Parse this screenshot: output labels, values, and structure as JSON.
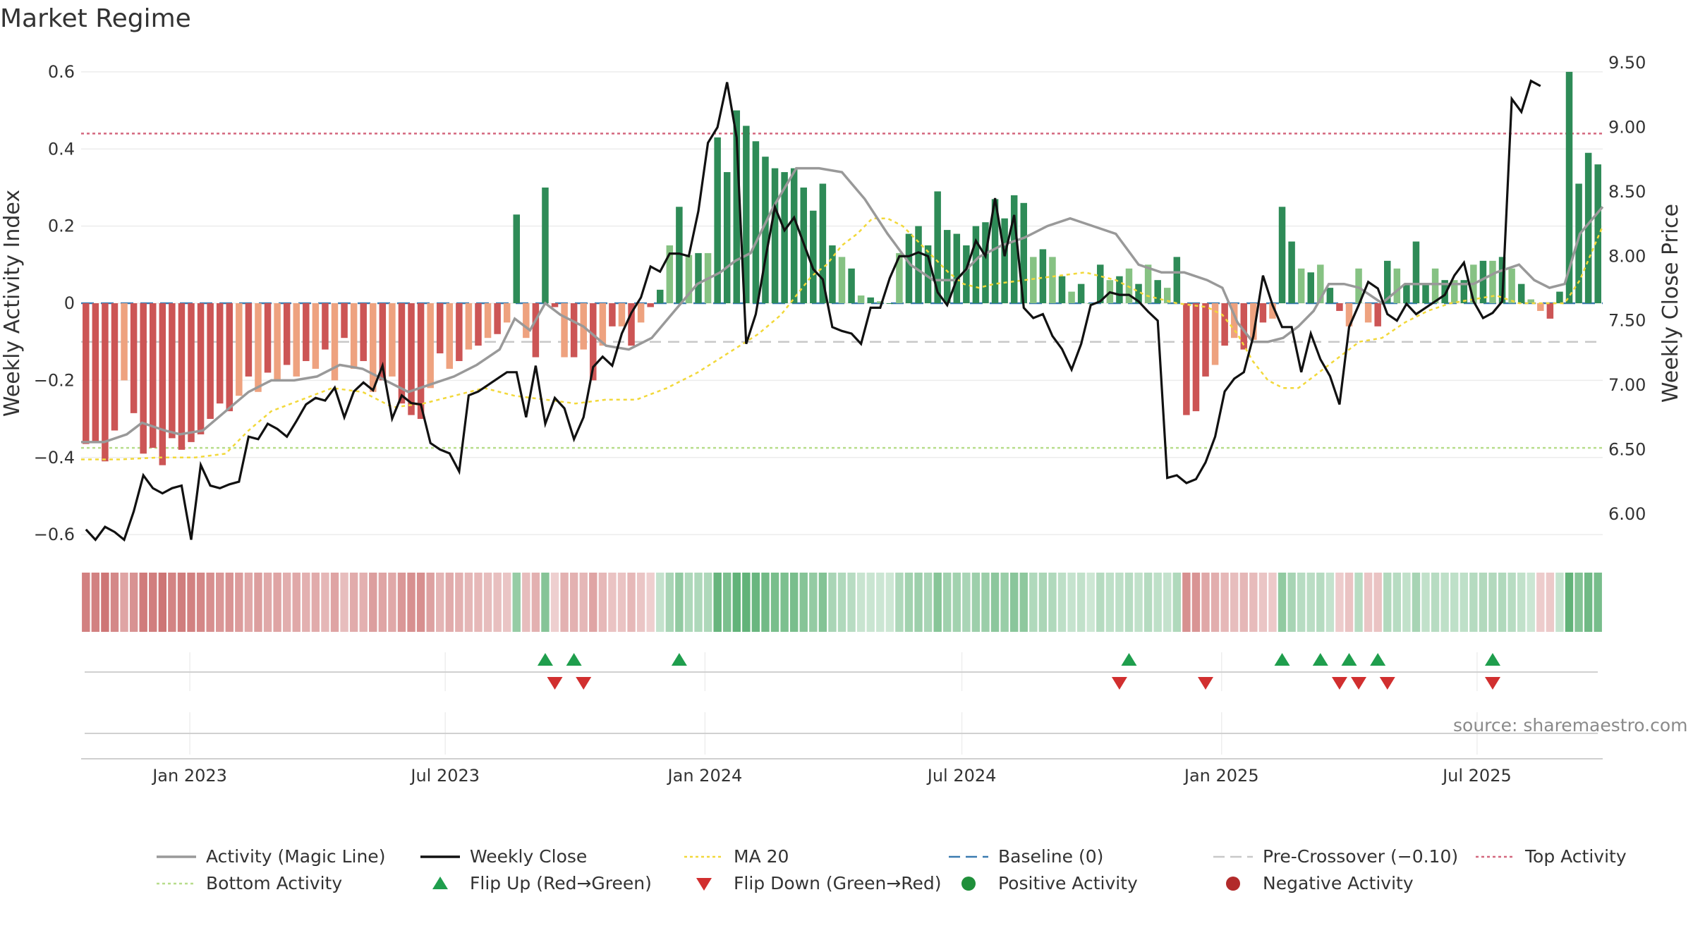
{
  "title": "Market Regime",
  "source": "source: sharemaestro.com",
  "colors": {
    "activity_line": "#999999",
    "close_line": "#111111",
    "ma20": "#f2d83a",
    "baseline": "#3a7bb0",
    "pre_crossover": "#c8c8c8",
    "top_activity": "#d4687e",
    "bottom_activity": "#b8dd8c",
    "pos_dark": "#2e8b57",
    "pos_light": "#86c283",
    "neg_dark": "#cc5555",
    "neg_light": "#eea27f",
    "flip_up": "#1f9e4d",
    "flip_down": "#d12f2f",
    "positive_activity": "#1f8f3a",
    "negative_activity": "#b22a2a"
  },
  "chart_data": {
    "type": "bar",
    "title": "Market Regime",
    "ylabel_left": "Weekly Activity Index",
    "ylabel_right": "Weekly Close Price",
    "ylim_left": [
      -0.64,
      0.64
    ],
    "ylim_right": [
      5.72,
      9.55
    ],
    "yticks_left": [
      "0.6",
      "0.4",
      "0.2",
      "0",
      "−0.2",
      "−0.4",
      "−0.6"
    ],
    "yticks_left_values": [
      0.6,
      0.4,
      0.2,
      0,
      -0.2,
      -0.4,
      -0.6
    ],
    "yticks_right": [
      "9.50",
      "9.00",
      "8.50",
      "8.00",
      "7.50",
      "7.00",
      "6.50",
      "6.00"
    ],
    "yticks_right_values": [
      9.5,
      9.0,
      8.5,
      8.0,
      7.5,
      7.0,
      6.5,
      6.0
    ],
    "x_start": "2022-10-16",
    "x_end": "2025-09-28",
    "xticks": [
      "Jan 2023",
      "Jul 2023",
      "Jan 2024",
      "Jul 2024",
      "Jan 2025",
      "Jul 2025"
    ],
    "xticks_dates": [
      "2023-01-01",
      "2023-07-01",
      "2024-01-01",
      "2024-07-01",
      "2025-01-01",
      "2025-07-01"
    ],
    "reference_lines": {
      "baseline": 0,
      "pre_crossover": -0.1,
      "top_activity": 0.44,
      "bottom_activity": -0.375
    },
    "activity": [
      -0.365,
      -0.36,
      -0.41,
      -0.33,
      -0.2,
      -0.285,
      -0.39,
      -0.375,
      -0.42,
      -0.35,
      -0.38,
      -0.36,
      -0.34,
      -0.3,
      -0.26,
      -0.28,
      -0.24,
      -0.19,
      -0.23,
      -0.18,
      -0.2,
      -0.16,
      -0.19,
      -0.15,
      -0.17,
      -0.12,
      -0.2,
      -0.09,
      -0.17,
      -0.15,
      -0.23,
      -0.2,
      -0.19,
      -0.26,
      -0.29,
      -0.3,
      -0.22,
      -0.13,
      -0.17,
      -0.15,
      -0.12,
      -0.11,
      -0.09,
      -0.08,
      -0.05,
      0.23,
      -0.09,
      -0.14,
      0.3,
      -0.01,
      -0.14,
      -0.14,
      -0.12,
      -0.2,
      -0.11,
      -0.06,
      -0.06,
      -0.11,
      -0.05,
      -0.01,
      0.035,
      0.15,
      0.25,
      0.125,
      0.13,
      0.13,
      0.43,
      0.34,
      0.5,
      0.46,
      0.42,
      0.38,
      0.35,
      0.34,
      0.35,
      0.3,
      0.24,
      0.31,
      0.15,
      0.12,
      0.09,
      0.02,
      0.015,
      0.005,
      0.0,
      0.13,
      0.18,
      0.2,
      0.15,
      0.29,
      0.19,
      0.18,
      0.15,
      0.2,
      0.21,
      0.27,
      0.22,
      0.28,
      0.26,
      0.12,
      0.14,
      0.12,
      0.07,
      0.03,
      0.05,
      0.0,
      0.1,
      0.06,
      0.07,
      0.09,
      0.05,
      0.1,
      0.06,
      0.04,
      0.12,
      -0.29,
      -0.28,
      -0.19,
      -0.16,
      -0.11,
      -0.09,
      -0.12,
      -0.095,
      -0.05,
      -0.04,
      0.25,
      0.16,
      0.09,
      0.08,
      0.1,
      0.04,
      -0.02,
      -0.06,
      0.09,
      -0.05,
      -0.06,
      0.11,
      0.09,
      0.05,
      0.16,
      0.05,
      0.09,
      0.06,
      0.06,
      0.06,
      0.1,
      0.11,
      0.11,
      0.12,
      0.09,
      0.05,
      0.01,
      -0.02,
      -0.04,
      0.03,
      0.6,
      0.31,
      0.39,
      0.36
    ],
    "close": [
      5.88,
      5.8,
      5.9,
      5.86,
      5.8,
      6.02,
      6.3,
      6.2,
      6.16,
      6.2,
      6.22,
      5.8,
      6.38,
      6.22,
      6.2,
      6.23,
      6.25,
      6.6,
      6.58,
      6.7,
      6.66,
      6.6,
      6.72,
      6.85,
      6.9,
      6.88,
      6.98,
      6.75,
      6.95,
      7.02,
      6.96,
      7.15,
      6.74,
      6.92,
      6.86,
      6.85,
      6.55,
      6.5,
      6.47,
      6.33,
      6.92,
      6.95,
      7.0,
      7.05,
      7.1,
      7.1,
      6.75,
      7.15,
      6.7,
      6.9,
      6.82,
      6.58,
      6.75,
      7.14,
      7.22,
      7.15,
      7.4,
      7.56,
      7.68,
      7.92,
      7.88,
      8.02,
      8.02,
      8.0,
      8.35,
      8.88,
      9.0,
      9.35,
      8.92,
      7.32,
      7.55,
      7.98,
      8.38,
      8.2,
      8.3,
      8.1,
      7.9,
      7.82,
      7.45,
      7.42,
      7.4,
      7.32,
      7.6,
      7.6,
      7.83,
      8.0,
      8.0,
      8.03,
      8.0,
      7.72,
      7.62,
      7.82,
      7.9,
      8.12,
      8.0,
      8.45,
      8.0,
      8.32,
      7.6,
      7.52,
      7.55,
      7.38,
      7.28,
      7.12,
      7.32,
      7.62,
      7.65,
      7.72,
      7.7,
      7.7,
      7.65,
      7.57,
      7.5,
      6.28,
      6.3,
      6.24,
      6.27,
      6.4,
      6.6,
      6.95,
      7.05,
      7.1,
      7.38,
      7.85,
      7.62,
      7.45,
      7.45,
      7.1,
      7.4,
      7.2,
      7.07,
      6.85,
      7.45,
      7.62,
      7.8,
      7.75,
      7.55,
      7.5,
      7.63,
      7.55,
      7.6,
      7.65,
      7.7,
      7.85,
      7.95,
      7.65,
      7.52,
      7.56,
      7.65,
      9.22,
      9.12,
      9.36,
      9.32
    ],
    "activity_magic_line": [
      [
        0,
        -0.36
      ],
      [
        3,
        -0.36
      ],
      [
        6,
        -0.34
      ],
      [
        8,
        -0.31
      ],
      [
        11,
        -0.33
      ],
      [
        13,
        -0.34
      ],
      [
        16,
        -0.33
      ],
      [
        19,
        -0.28
      ],
      [
        22,
        -0.23
      ],
      [
        25,
        -0.2
      ],
      [
        28,
        -0.2
      ],
      [
        31,
        -0.19
      ],
      [
        34,
        -0.16
      ],
      [
        37,
        -0.17
      ],
      [
        40,
        -0.2
      ],
      [
        43,
        -0.23
      ],
      [
        46,
        -0.21
      ],
      [
        49,
        -0.19
      ],
      [
        52,
        -0.16
      ],
      [
        55,
        -0.12
      ],
      [
        57,
        -0.04
      ],
      [
        59,
        -0.07
      ],
      [
        61,
        0.0
      ],
      [
        63,
        -0.03
      ],
      [
        66,
        -0.06
      ],
      [
        69,
        -0.11
      ],
      [
        72,
        -0.12
      ],
      [
        75,
        -0.09
      ],
      [
        78,
        -0.02
      ],
      [
        81,
        0.05
      ],
      [
        84,
        0.08
      ],
      [
        86,
        0.11
      ],
      [
        88,
        0.13
      ],
      [
        91,
        0.25
      ],
      [
        94,
        0.35
      ],
      [
        97,
        0.35
      ],
      [
        100,
        0.34
      ],
      [
        103,
        0.27
      ],
      [
        106,
        0.18
      ],
      [
        109,
        0.1
      ],
      [
        112,
        0.06
      ],
      [
        115,
        0.06
      ],
      [
        118,
        0.12
      ],
      [
        121,
        0.15
      ],
      [
        124,
        0.17
      ],
      [
        127,
        0.2
      ],
      [
        130,
        0.22
      ],
      [
        133,
        0.2
      ],
      [
        136,
        0.18
      ],
      [
        139,
        0.1
      ],
      [
        142,
        0.08
      ],
      [
        145,
        0.08
      ],
      [
        148,
        0.06
      ],
      [
        150,
        0.04
      ],
      [
        152,
        -0.05
      ],
      [
        154,
        -0.1
      ],
      [
        156,
        -0.1
      ],
      [
        158,
        -0.09
      ],
      [
        160,
        -0.06
      ],
      [
        162,
        -0.02
      ],
      [
        164,
        0.05
      ],
      [
        166,
        0.05
      ],
      [
        168,
        0.04
      ],
      [
        171,
        0.0
      ],
      [
        174,
        0.05
      ],
      [
        177,
        0.05
      ],
      [
        180,
        0.05
      ],
      [
        183,
        0.05
      ],
      [
        186,
        0.08
      ],
      [
        189,
        0.1
      ],
      [
        191,
        0.06
      ],
      [
        193,
        0.04
      ],
      [
        195,
        0.05
      ],
      [
        197,
        0.18
      ],
      [
        200,
        0.25
      ]
    ],
    "ma20": [
      [
        0,
        -0.405
      ],
      [
        5,
        -0.405
      ],
      [
        10,
        -0.4
      ],
      [
        15,
        -0.4
      ],
      [
        19,
        -0.39
      ],
      [
        22,
        -0.33
      ],
      [
        25,
        -0.28
      ],
      [
        29,
        -0.25
      ],
      [
        33,
        -0.22
      ],
      [
        37,
        -0.23
      ],
      [
        41,
        -0.27
      ],
      [
        45,
        -0.26
      ],
      [
        49,
        -0.24
      ],
      [
        53,
        -0.22
      ],
      [
        57,
        -0.24
      ],
      [
        61,
        -0.25
      ],
      [
        65,
        -0.26
      ],
      [
        69,
        -0.25
      ],
      [
        73,
        -0.25
      ],
      [
        77,
        -0.22
      ],
      [
        81,
        -0.18
      ],
      [
        85,
        -0.13
      ],
      [
        89,
        -0.08
      ],
      [
        92,
        -0.03
      ],
      [
        94,
        0.02
      ],
      [
        96,
        0.07
      ],
      [
        98,
        0.1
      ],
      [
        100,
        0.15
      ],
      [
        102,
        0.18
      ],
      [
        104,
        0.22
      ],
      [
        106,
        0.22
      ],
      [
        108,
        0.2
      ],
      [
        110,
        0.16
      ],
      [
        112,
        0.12
      ],
      [
        114,
        0.08
      ],
      [
        116,
        0.05
      ],
      [
        118,
        0.04
      ],
      [
        120,
        0.05
      ],
      [
        124,
        0.06
      ],
      [
        128,
        0.07
      ],
      [
        132,
        0.08
      ],
      [
        136,
        0.06
      ],
      [
        140,
        0.02
      ],
      [
        144,
        0.0
      ],
      [
        148,
        -0.01
      ],
      [
        150,
        -0.03
      ],
      [
        152,
        -0.08
      ],
      [
        154,
        -0.15
      ],
      [
        156,
        -0.2
      ],
      [
        158,
        -0.22
      ],
      [
        160,
        -0.22
      ],
      [
        162,
        -0.19
      ],
      [
        164,
        -0.16
      ],
      [
        166,
        -0.13
      ],
      [
        168,
        -0.1
      ],
      [
        171,
        -0.09
      ],
      [
        174,
        -0.05
      ],
      [
        177,
        -0.02
      ],
      [
        180,
        0.0
      ],
      [
        183,
        0.01
      ],
      [
        186,
        0.02
      ],
      [
        189,
        0.0
      ],
      [
        192,
        0.0
      ],
      [
        195,
        0.0
      ],
      [
        197,
        0.06
      ],
      [
        200,
        0.2
      ]
    ],
    "flip_up_weeks": [
      48,
      51,
      62,
      109,
      125,
      129,
      132,
      135,
      147
    ],
    "flip_down_weeks": [
      49,
      52,
      108,
      117,
      131,
      133,
      136,
      147
    ]
  },
  "legend": [
    {
      "label": "Activity (Magic Line)",
      "kind": "line-solid",
      "color": "#999999"
    },
    {
      "label": "Weekly Close",
      "kind": "line-solid",
      "color": "#111111"
    },
    {
      "label": "MA 20",
      "kind": "line-dotted",
      "color": "#f2d83a"
    },
    {
      "label": "Baseline (0)",
      "kind": "line-dashed",
      "color": "#3a7bb0"
    },
    {
      "label": "Pre-Crossover (−0.10)",
      "kind": "line-dashed",
      "color": "#c8c8c8"
    },
    {
      "label": "Top Activity",
      "kind": "line-dotted",
      "color": "#d4687e"
    },
    {
      "label": "Bottom Activity",
      "kind": "line-dotted",
      "color": "#b8dd8c"
    },
    {
      "label": "Flip Up (Red→Green)",
      "kind": "triangle-up",
      "color": "#1f9e4d"
    },
    {
      "label": "Flip Down (Green→Red)",
      "kind": "triangle-down",
      "color": "#d12f2f"
    },
    {
      "label": "Positive Activity",
      "kind": "dot",
      "color": "#1f8f3a"
    },
    {
      "label": "Negative Activity",
      "kind": "dot",
      "color": "#b22a2a"
    }
  ]
}
